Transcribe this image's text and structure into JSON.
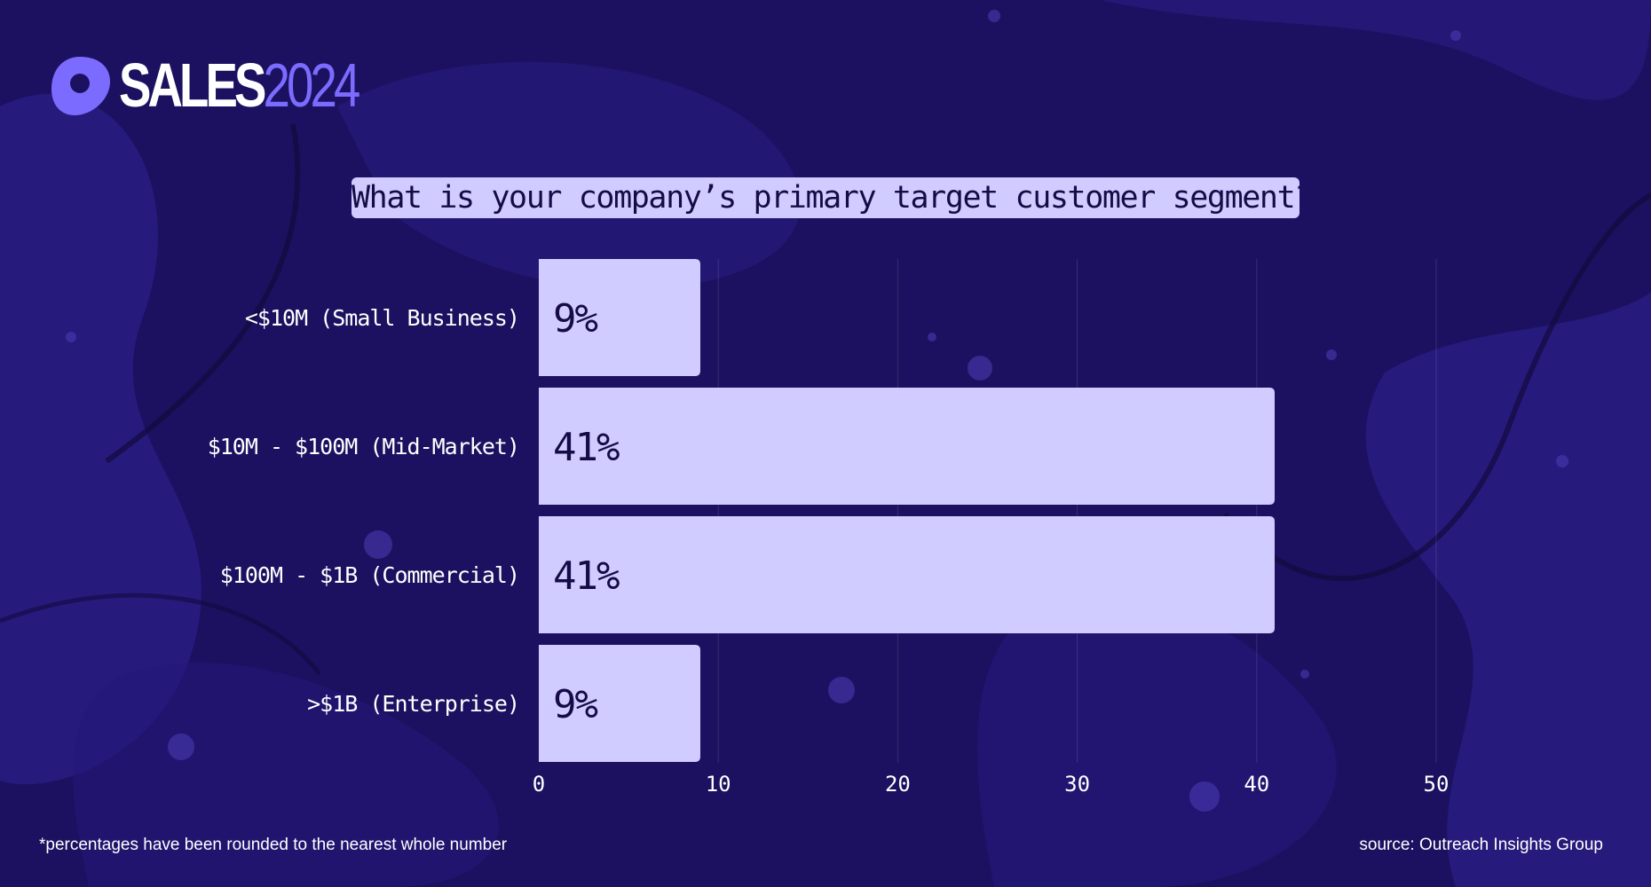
{
  "brand": {
    "sales": "SALES",
    "year": "2024"
  },
  "colors": {
    "background": "#1c1160",
    "bar": "#d1ccff",
    "accent": "#7b6cff",
    "text_dark": "#150c47"
  },
  "footnote": "*percentages have been rounded to the nearest whole number",
  "source": "source: Outreach Insights Group",
  "chart_data": {
    "type": "bar",
    "orientation": "horizontal",
    "title": "What is your company’s primary target customer segment?",
    "categories": [
      "<$10M (Small Business)",
      "$10M - $100M (Mid-Market)",
      "$100M - $1B (Commercial)",
      ">$1B (Enterprise)"
    ],
    "values": [
      9,
      41,
      41,
      9
    ],
    "value_labels": [
      "9%",
      "41%",
      "41%",
      "9%"
    ],
    "xlim": [
      0,
      50
    ],
    "xticks": [
      0,
      10,
      20,
      30,
      40,
      50
    ],
    "xlabel": "",
    "ylabel": "",
    "grid": true
  }
}
